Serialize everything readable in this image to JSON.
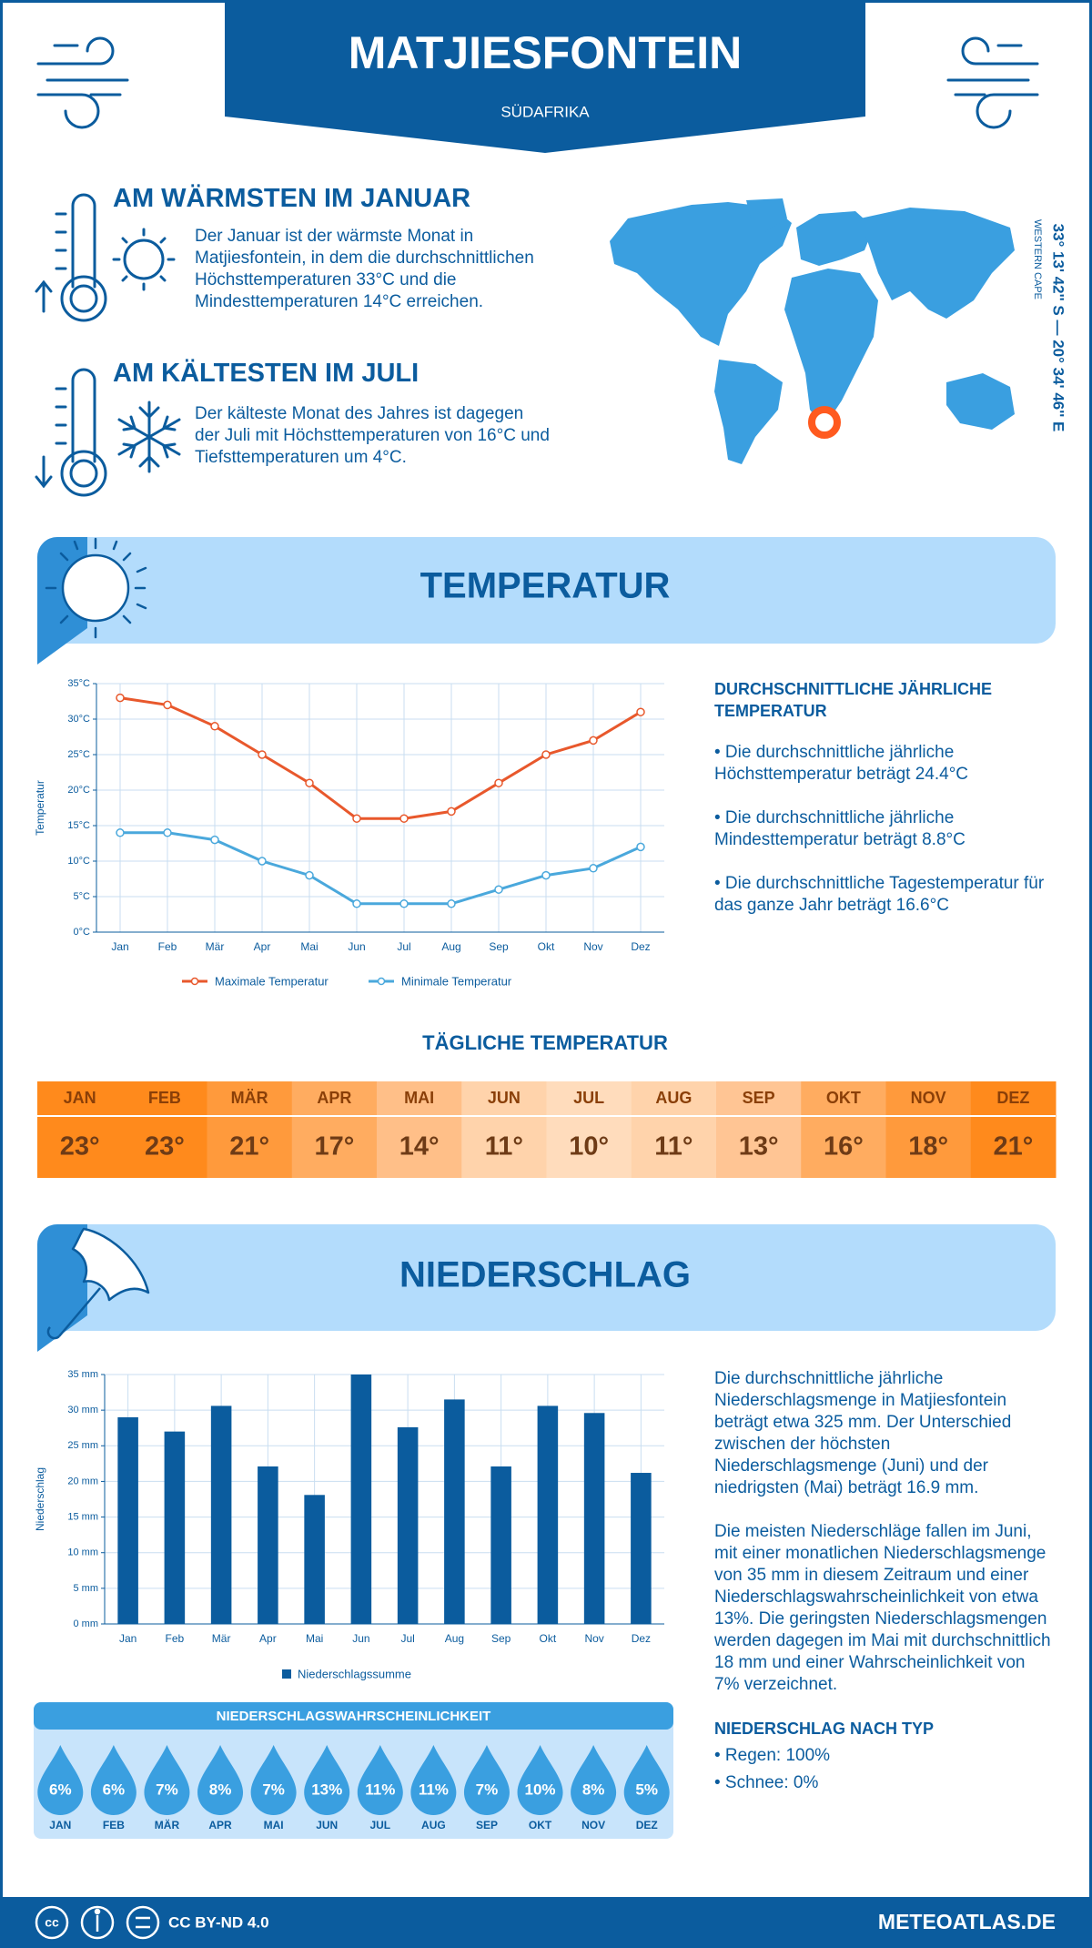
{
  "header": {
    "title": "MATJIESFONTEIN",
    "subtitle": "SÜDAFRIKA"
  },
  "warmest": {
    "title": "AM WÄRMSTEN IM JANUAR",
    "text": "Der Januar ist der wärmste Monat in Matjiesfontein, in dem die durchschnittlichen Höchsttemperaturen 33°C und die Mindesttemperaturen 14°C erreichen."
  },
  "coldest": {
    "title": "AM KÄLTESTEN IM JULI",
    "text": "Der kälteste Monat des Jahres ist dagegen der Juli mit Höchsttemperaturen von 16°C und Tiefsttemperaturen um 4°C."
  },
  "location": {
    "coordinates": "33° 13' 42'' S — 20° 34' 46'' E",
    "region": "WESTERN CAPE"
  },
  "temperature_section": {
    "title": "TEMPERATUR",
    "summary_title": "DURCHSCHNITTLICHE JÄHRLICHE TEMPERATUR",
    "points": [
      "• Die durchschnittliche jährliche Höchsttemperatur beträgt 24.4°C",
      "• Die durchschnittliche jährliche Mindesttemperatur beträgt 8.8°C",
      "• Die durchschnittliche Tagestemperatur für das ganze Jahr beträgt 16.6°C"
    ]
  },
  "chart_data": [
    {
      "type": "line",
      "y_label": "Temperatur",
      "categories": [
        "Jan",
        "Feb",
        "Mär",
        "Apr",
        "Mai",
        "Jun",
        "Jul",
        "Aug",
        "Sep",
        "Okt",
        "Nov",
        "Dez"
      ],
      "series": [
        {
          "name": "Maximale Temperatur",
          "color": "#e8582c",
          "values": [
            33,
            32,
            29,
            25,
            21,
            16,
            16,
            17,
            21,
            25,
            27,
            31
          ]
        },
        {
          "name": "Minimale Temperatur",
          "color": "#4aa8dc",
          "values": [
            14,
            14,
            13,
            10,
            8,
            4,
            4,
            4,
            6,
            8,
            9,
            12
          ]
        }
      ],
      "ylim": [
        0,
        35
      ],
      "yticks": [
        {
          "value": 0,
          "label": "0°C"
        },
        {
          "value": 5,
          "label": "5°C"
        },
        {
          "value": 10,
          "label": "10°C"
        },
        {
          "value": 15,
          "label": "15°C"
        },
        {
          "value": 20,
          "label": "20°C"
        },
        {
          "value": 25,
          "label": "25°C"
        },
        {
          "value": 30,
          "label": "30°C"
        },
        {
          "value": 35,
          "label": "35°C"
        }
      ],
      "grid": true
    },
    {
      "type": "bar",
      "y_label": "Niederschlag",
      "categories": [
        "Jan",
        "Feb",
        "Mär",
        "Apr",
        "Mai",
        "Jun",
        "Jul",
        "Aug",
        "Sep",
        "Okt",
        "Nov",
        "Dez"
      ],
      "series": [
        {
          "name": "Niederschlagssumme",
          "color": "#0b5c9e",
          "values": [
            29,
            27,
            30.6,
            22.1,
            18.1,
            35,
            27.6,
            31.5,
            22.1,
            30.6,
            29.6,
            21.2
          ]
        }
      ],
      "ylim": [
        0,
        35
      ],
      "yticks": [
        {
          "value": 0,
          "label": "0 mm"
        },
        {
          "value": 5,
          "label": "5 mm"
        },
        {
          "value": 10,
          "label": "10 mm"
        },
        {
          "value": 15,
          "label": "15 mm"
        },
        {
          "value": 20,
          "label": "20 mm"
        },
        {
          "value": 25,
          "label": "25 mm"
        },
        {
          "value": 30,
          "label": "30 mm"
        },
        {
          "value": 35,
          "label": "35 mm"
        }
      ],
      "grid": true
    }
  ],
  "daily_temperature": {
    "title": "TÄGLICHE TEMPERATUR",
    "months": [
      "JAN",
      "FEB",
      "MÄR",
      "APR",
      "MAI",
      "JUN",
      "JUL",
      "AUG",
      "SEP",
      "OKT",
      "NOV",
      "DEZ"
    ],
    "values": [
      "23°",
      "23°",
      "21°",
      "17°",
      "14°",
      "11°",
      "10°",
      "11°",
      "13°",
      "16°",
      "18°",
      "21°"
    ],
    "colors": [
      "#ff8a1c",
      "#ff8a1c",
      "#ff9a3c",
      "#ffac60",
      "#ffbf88",
      "#ffd3ab",
      "#ffdcbc",
      "#ffd3ab",
      "#ffc594",
      "#ffac60",
      "#ff9a3c",
      "#ff8a1c"
    ]
  },
  "precipitation_section": {
    "title": "NIEDERSCHLAG",
    "paragraphs": [
      "Die durchschnittliche jährliche Niederschlagsmenge in Matjiesfontein beträgt etwa 325 mm. Der Unterschied zwischen der höchsten Niederschlagsmenge (Juni) und der niedrigsten (Mai) beträgt 16.9 mm.",
      "Die meisten Niederschläge fallen im Juni, mit einer monatlichen Niederschlagsmenge von 35 mm in diesem Zeitraum und einer Niederschlagswahrscheinlichkeit von etwa 13%. Die geringsten Niederschlagsmengen werden dagegen im Mai mit durchschnittlich 18 mm und einer Wahrscheinlichkeit von 7% verzeichnet."
    ],
    "by_type_title": "NIEDERSCHLAG NACH TYP",
    "by_type": [
      "• Regen: 100%",
      "• Schnee: 0%"
    ]
  },
  "probability": {
    "title": "NIEDERSCHLAGSWAHRSCHEINLICHKEIT",
    "months": [
      "JAN",
      "FEB",
      "MÄR",
      "APR",
      "MAI",
      "JUN",
      "JUL",
      "AUG",
      "SEP",
      "OKT",
      "NOV",
      "DEZ"
    ],
    "values": [
      "6%",
      "6%",
      "7%",
      "8%",
      "7%",
      "13%",
      "11%",
      "11%",
      "7%",
      "10%",
      "8%",
      "5%"
    ]
  },
  "footer": {
    "license": "CC BY-ND 4.0",
    "site": "METEOATLAS.DE"
  }
}
